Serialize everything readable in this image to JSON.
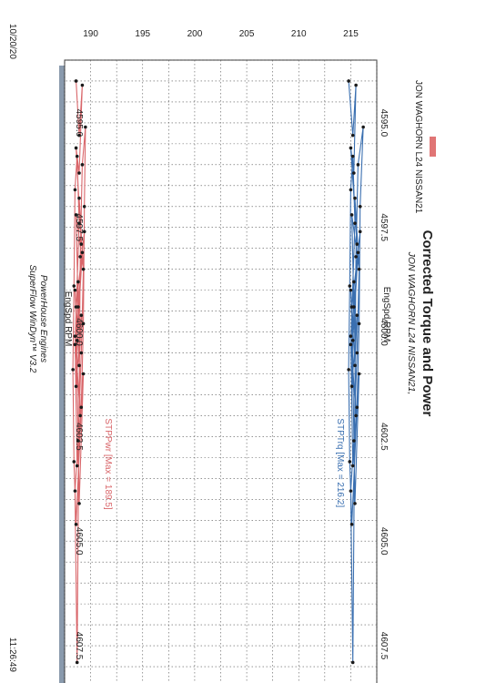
{
  "chart_data": {
    "type": "line",
    "title": "Corrected Torque and Power",
    "subtitle": "JON WAGHORN L24 NISSAN21,",
    "xlabel": "EngSpd RPM",
    "x_ticks": [
      "4595.0",
      "4597.5",
      "4600.0",
      "4602.5",
      "4605.0",
      "4607.5"
    ],
    "xlim": [
      4593.5,
      4608.5
    ],
    "y_ticks_left": [
      "190",
      "195",
      "200",
      "205",
      "210",
      "215"
    ],
    "ylim": [
      187.5,
      217.5
    ],
    "grid": true,
    "legend": {
      "label": "JON WAGHORN L24 NISSAN21",
      "color": "#e07575"
    },
    "series": [
      {
        "name": "STPTrq [Max = 216.2]",
        "color": "#3a6fb0",
        "x": [
          4594.0,
          4595.3,
          4594.1,
          4596.2,
          4595.6,
          4597.9,
          4596.8,
          4598.5,
          4597.2,
          4599.4,
          4598.1,
          4600.2,
          4599.0,
          4600.8,
          4599.6,
          4601.3,
          4598.8,
          4602.0,
          4600.1,
          4603.2,
          4601.0,
          4604.1,
          4599.4,
          4597.6,
          4600.5,
          4602.6,
          4603.8,
          4607.9,
          4598.2,
          4596.0,
          4595.1,
          4597.0,
          4599.8,
          4601.8,
          4604.6,
          4603.1,
          4600.9,
          4598.9,
          4596.6,
          4595.8,
          4597.4,
          4600.3
        ],
        "y": [
          214.8,
          215.2,
          215.5,
          215.3,
          215.0,
          215.6,
          215.4,
          215.8,
          215.1,
          215.3,
          215.7,
          215.2,
          215.0,
          215.4,
          215.6,
          215.1,
          215.3,
          215.5,
          215.0,
          215.2,
          215.8,
          215.4,
          215.1,
          215.9,
          215.6,
          215.3,
          215.0,
          215.2,
          215.5,
          215.7,
          216.2,
          215.9,
          215.8,
          215.6,
          215.1,
          214.9,
          214.8,
          214.9,
          215.0,
          215.2,
          215.4,
          215.0
        ]
      },
      {
        "name": "STPPwr [Max = 189.5]",
        "color": "#d9666a",
        "x": [
          4594.0,
          4595.3,
          4594.1,
          4596.2,
          4595.6,
          4597.9,
          4596.8,
          4598.5,
          4597.2,
          4599.4,
          4598.1,
          4600.2,
          4599.0,
          4600.8,
          4599.6,
          4601.3,
          4598.8,
          4602.0,
          4600.1,
          4603.2,
          4601.0,
          4604.1,
          4599.4,
          4597.6,
          4600.5,
          4602.6,
          4603.8,
          4607.9,
          4598.2,
          4596.0,
          4595.1,
          4597.0,
          4599.8,
          4601.8,
          4604.6,
          4603.1,
          4600.9,
          4598.9,
          4596.6,
          4595.8,
          4597.4,
          4600.3
        ],
        "y": [
          188.6,
          188.9,
          189.2,
          188.9,
          188.6,
          189.1,
          188.9,
          189.3,
          188.6,
          188.8,
          189.2,
          188.7,
          188.5,
          188.9,
          189.1,
          188.6,
          188.8,
          189.0,
          188.5,
          188.7,
          189.3,
          188.9,
          188.6,
          189.4,
          189.1,
          188.8,
          188.5,
          188.7,
          189.0,
          189.2,
          189.5,
          189.4,
          189.3,
          189.1,
          188.6,
          188.4,
          188.3,
          188.4,
          188.5,
          188.7,
          188.9,
          188.5
        ]
      }
    ]
  },
  "footer": {
    "date": "10/20/20",
    "time": "11:26:49",
    "company": "PowerHouse Engines",
    "software": "SuperFlow WinDyn™ V3.2"
  }
}
